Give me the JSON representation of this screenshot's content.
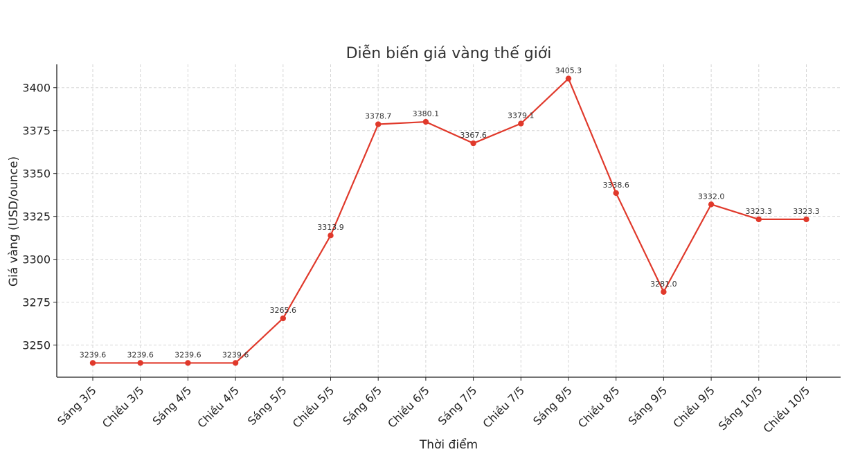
{
  "chart_data": {
    "type": "line",
    "title": "Diễn biến giá vàng thế giới",
    "xlabel": "Thời điểm",
    "ylabel": "Giá vàng (USD/ounce)",
    "categories": [
      "Sáng 3/5",
      "Chiều 3/5",
      "Sáng 4/5",
      "Chiều 4/5",
      "Sáng 5/5",
      "Chiều 5/5",
      "Sáng 6/5",
      "Chiều 6/5",
      "Sáng 7/5",
      "Chiều 7/5",
      "Sáng 8/5",
      "Chiều 8/5",
      "Sáng 9/5",
      "Chiều 9/5",
      "Sáng 10/5",
      "Chiều 10/5"
    ],
    "series": [
      {
        "values": [
          3239.6,
          3239.6,
          3239.6,
          3239.6,
          3265.6,
          3313.9,
          3378.7,
          3380.1,
          3367.6,
          3379.1,
          3405.3,
          3338.6,
          3281.0,
          3332.0,
          3323.3,
          3323.3
        ],
        "color": "#e0392b"
      }
    ],
    "data_labels": [
      "3239.6",
      "3239.6",
      "3239.6",
      "3239.6",
      "3265.6",
      "3313.9",
      "3378.7",
      "3380.1",
      "3367.6",
      "3379.1",
      "3405.3",
      "3338.6",
      "3281.0",
      "3332.0",
      "3323.3",
      "3323.3"
    ],
    "yticks": [
      3250,
      3275,
      3300,
      3325,
      3350,
      3375,
      3400
    ],
    "ylim": [
      3231.3,
      3413.6
    ],
    "grid": true,
    "legend": false
  }
}
